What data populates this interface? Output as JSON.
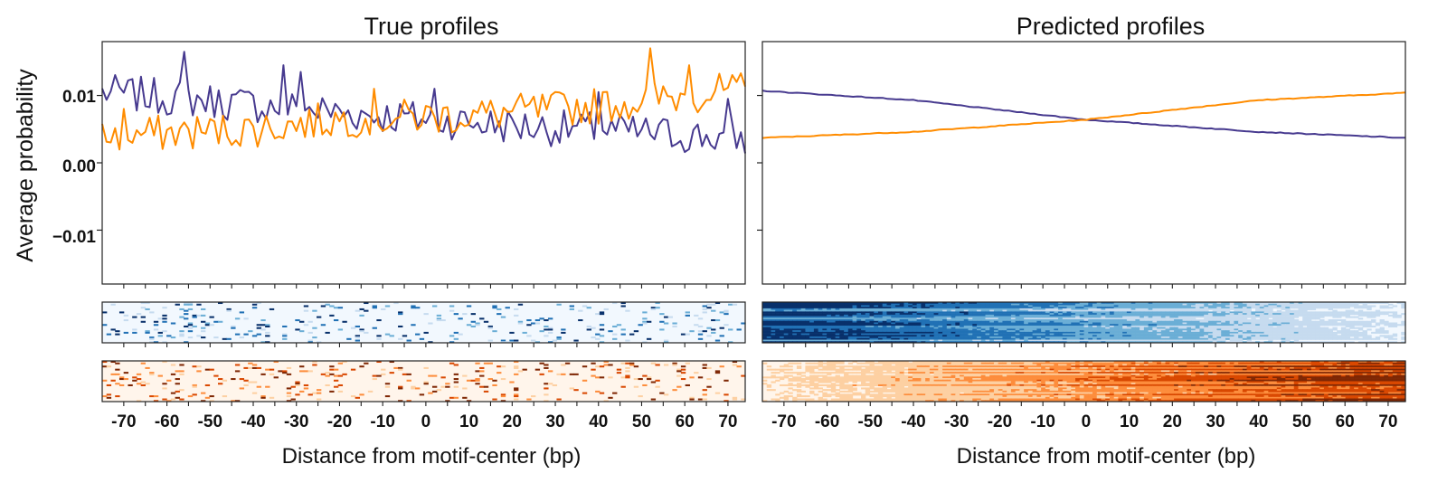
{
  "colors": {
    "strand_a": "#473a8f",
    "strand_b": "#ff8c00",
    "blues": [
      "#f2f8fe",
      "#c6dbef",
      "#6baed6",
      "#2171b5",
      "#08306b"
    ],
    "oranges": [
      "#fff5eb",
      "#fdd0a2",
      "#fd8d3c",
      "#d94801",
      "#7f2704"
    ]
  },
  "chart_data": [
    {
      "type": "line",
      "title": "True profiles",
      "ylabel": "Average probability",
      "xlabel": "",
      "xlim": [
        -75,
        74
      ],
      "ylim": [
        -0.018,
        0.018
      ],
      "yticks": [
        0.01,
        0.0,
        -0.01
      ],
      "ytick_labels": [
        "0.01",
        "0.00",
        "−0.01"
      ],
      "series": [
        {
          "name": "strand_a",
          "color_key": "strand_a",
          "noise": "high",
          "anchors": [
            [
              -75,
              0.0105
            ],
            [
              -55,
              0.0095
            ],
            [
              -20,
              0.0075
            ],
            [
              20,
              0.0055
            ],
            [
              50,
              0.0045
            ],
            [
              74,
              0.0035
            ]
          ],
          "peaks": [
            [
              -56,
              0.0165
            ],
            [
              -33,
              0.0145
            ],
            [
              -29,
              0.0135
            ],
            [
              2,
              0.011
            ],
            [
              40,
              0.0105
            ],
            [
              70,
              0.0095
            ]
          ]
        },
        {
          "name": "strand_b",
          "color_key": "strand_b",
          "noise": "high",
          "anchors": [
            [
              -75,
              0.004
            ],
            [
              -40,
              0.005
            ],
            [
              -20,
              0.0065
            ],
            [
              10,
              0.007
            ],
            [
              40,
              0.0085
            ],
            [
              74,
              0.011
            ]
          ],
          "peaks": [
            [
              -70,
              0.008
            ],
            [
              -12,
              0.011
            ],
            [
              52,
              0.017
            ],
            [
              61,
              0.0145
            ],
            [
              72,
              0.012
            ]
          ]
        }
      ]
    },
    {
      "type": "line",
      "title": "Predicted profiles",
      "ylabel": "",
      "xlabel": "",
      "xlim": [
        -75,
        74
      ],
      "ylim": [
        -0.018,
        0.018
      ],
      "yticks": [
        0.01,
        0.0,
        -0.01
      ],
      "series": [
        {
          "name": "strand_a",
          "color_key": "strand_a",
          "noise": "low",
          "anchors": [
            [
              -75,
              0.0107
            ],
            [
              -40,
              0.0093
            ],
            [
              0,
              0.0064
            ],
            [
              40,
              0.0046
            ],
            [
              74,
              0.0037
            ]
          ]
        },
        {
          "name": "strand_b",
          "color_key": "strand_b",
          "noise": "low",
          "anchors": [
            [
              -75,
              0.0037
            ],
            [
              -40,
              0.0046
            ],
            [
              0,
              0.0064
            ],
            [
              40,
              0.0093
            ],
            [
              74,
              0.0104
            ]
          ]
        }
      ]
    },
    {
      "type": "heatmap",
      "name": "true-heatmap-strand-a",
      "palette": "blues",
      "rows": 26,
      "density": "sparse"
    },
    {
      "type": "heatmap",
      "name": "true-heatmap-strand-b",
      "palette": "oranges",
      "rows": 26,
      "density": "sparse"
    },
    {
      "type": "heatmap",
      "name": "predicted-heatmap-strand-a",
      "palette": "blues",
      "rows": 26,
      "density": "dense",
      "xlabel": "Distance from motif-center (bp)",
      "xticks": [
        -70,
        -60,
        -50,
        -40,
        -30,
        -20,
        -10,
        0,
        10,
        20,
        30,
        40,
        50,
        60,
        70
      ],
      "gradient": "left-strong"
    },
    {
      "type": "heatmap",
      "name": "predicted-heatmap-strand-b",
      "palette": "oranges",
      "rows": 26,
      "density": "dense",
      "gradient": "right-strong"
    }
  ],
  "axes": {
    "x_label": "Distance from motif-center (bp)",
    "x_ticks": [
      "-70",
      "-60",
      "-50",
      "-40",
      "-30",
      "-20",
      "-10",
      "0",
      "10",
      "20",
      "30",
      "40",
      "50",
      "60",
      "70"
    ]
  }
}
